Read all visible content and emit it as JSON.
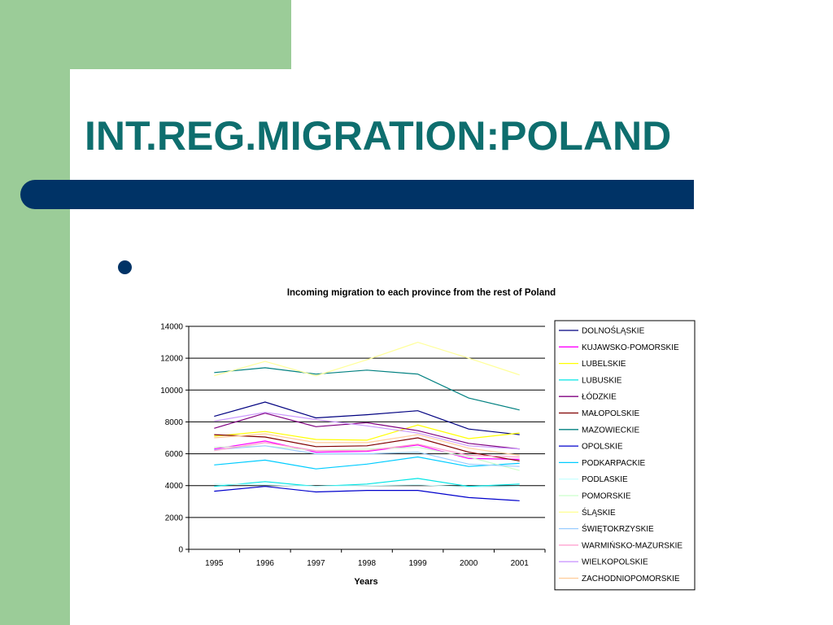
{
  "slide": {
    "title": "INT.REG.MIGRATION:POLAND"
  },
  "chart_data": {
    "type": "line",
    "title": "Incoming migration to each province from the rest of Poland",
    "xlabel": "Years",
    "ylabel": "",
    "x": [
      "1995",
      "1996",
      "1997",
      "1998",
      "1999",
      "2000",
      "2001"
    ],
    "ylim": [
      0,
      14000
    ],
    "yticks": [
      0,
      2000,
      4000,
      6000,
      8000,
      10000,
      12000,
      14000
    ],
    "grid": "horizontal",
    "legend": "right",
    "series": [
      {
        "name": "DOLNOŚLĄSKIE",
        "color": "#000080",
        "values": [
          8350,
          9250,
          8250,
          8450,
          8700,
          7550,
          7200
        ]
      },
      {
        "name": "KUJAWSKO-POMORSKIE",
        "color": "#ff00ff",
        "values": [
          6300,
          6800,
          6100,
          6150,
          6550,
          5700,
          5650
        ]
      },
      {
        "name": "LUBELSKIE",
        "color": "#ffff00",
        "values": [
          7100,
          7400,
          6900,
          6850,
          7800,
          6950,
          7300
        ]
      },
      {
        "name": "LUBUSKIE",
        "color": "#00e5e5",
        "values": [
          3950,
          4250,
          3950,
          4100,
          4450,
          3950,
          4100
        ]
      },
      {
        "name": "ŁÓDZKIE",
        "color": "#800080",
        "values": [
          7600,
          8550,
          7700,
          7950,
          7450,
          6650,
          6300
        ]
      },
      {
        "name": "MAŁOPOLSKIE",
        "color": "#800000",
        "values": [
          7200,
          7050,
          6450,
          6500,
          7000,
          6100,
          5550
        ]
      },
      {
        "name": "MAZOWIECKIE",
        "color": "#008080",
        "values": [
          11100,
          11400,
          11000,
          11250,
          11000,
          9500,
          8750
        ]
      },
      {
        "name": "OPOLSKIE",
        "color": "#0000cc",
        "values": [
          3650,
          3950,
          3600,
          3700,
          3700,
          3250,
          3050
        ]
      },
      {
        "name": "PODKARPACKIE",
        "color": "#00ccff",
        "values": [
          5300,
          5600,
          5050,
          5350,
          5800,
          5200,
          5400
        ]
      },
      {
        "name": "PODLASKIE",
        "color": "#ccffff",
        "values": [
          4100,
          4050,
          3950,
          4000,
          4050,
          3900,
          3950
        ]
      },
      {
        "name": "POMORSKIE",
        "color": "#ccffcc",
        "values": [
          6400,
          6500,
          6200,
          6300,
          6400,
          5800,
          4950
        ]
      },
      {
        "name": "ŚLĄSKIE",
        "color": "#ffff99",
        "values": [
          10900,
          11800,
          10900,
          11900,
          13000,
          12000,
          10950
        ]
      },
      {
        "name": "ŚWIĘTOKRZYSKIE",
        "color": "#99ccff",
        "values": [
          6250,
          6500,
          6000,
          6000,
          6100,
          5350,
          5200
        ]
      },
      {
        "name": "WARMIŃSKO-MAZURSKIE",
        "color": "#ff99cc",
        "values": [
          6200,
          6700,
          6200,
          6200,
          6600,
          5900,
          5800
        ]
      },
      {
        "name": "WIELKOPOLSKIE",
        "color": "#cc99ff",
        "values": [
          8050,
          8600,
          8150,
          7750,
          7300,
          6500,
          6300
        ]
      },
      {
        "name": "ZACHODNIOPOMORSKIE",
        "color": "#ffcc99",
        "values": [
          7000,
          7250,
          6700,
          6700,
          7200,
          6350,
          5900
        ]
      }
    ]
  }
}
